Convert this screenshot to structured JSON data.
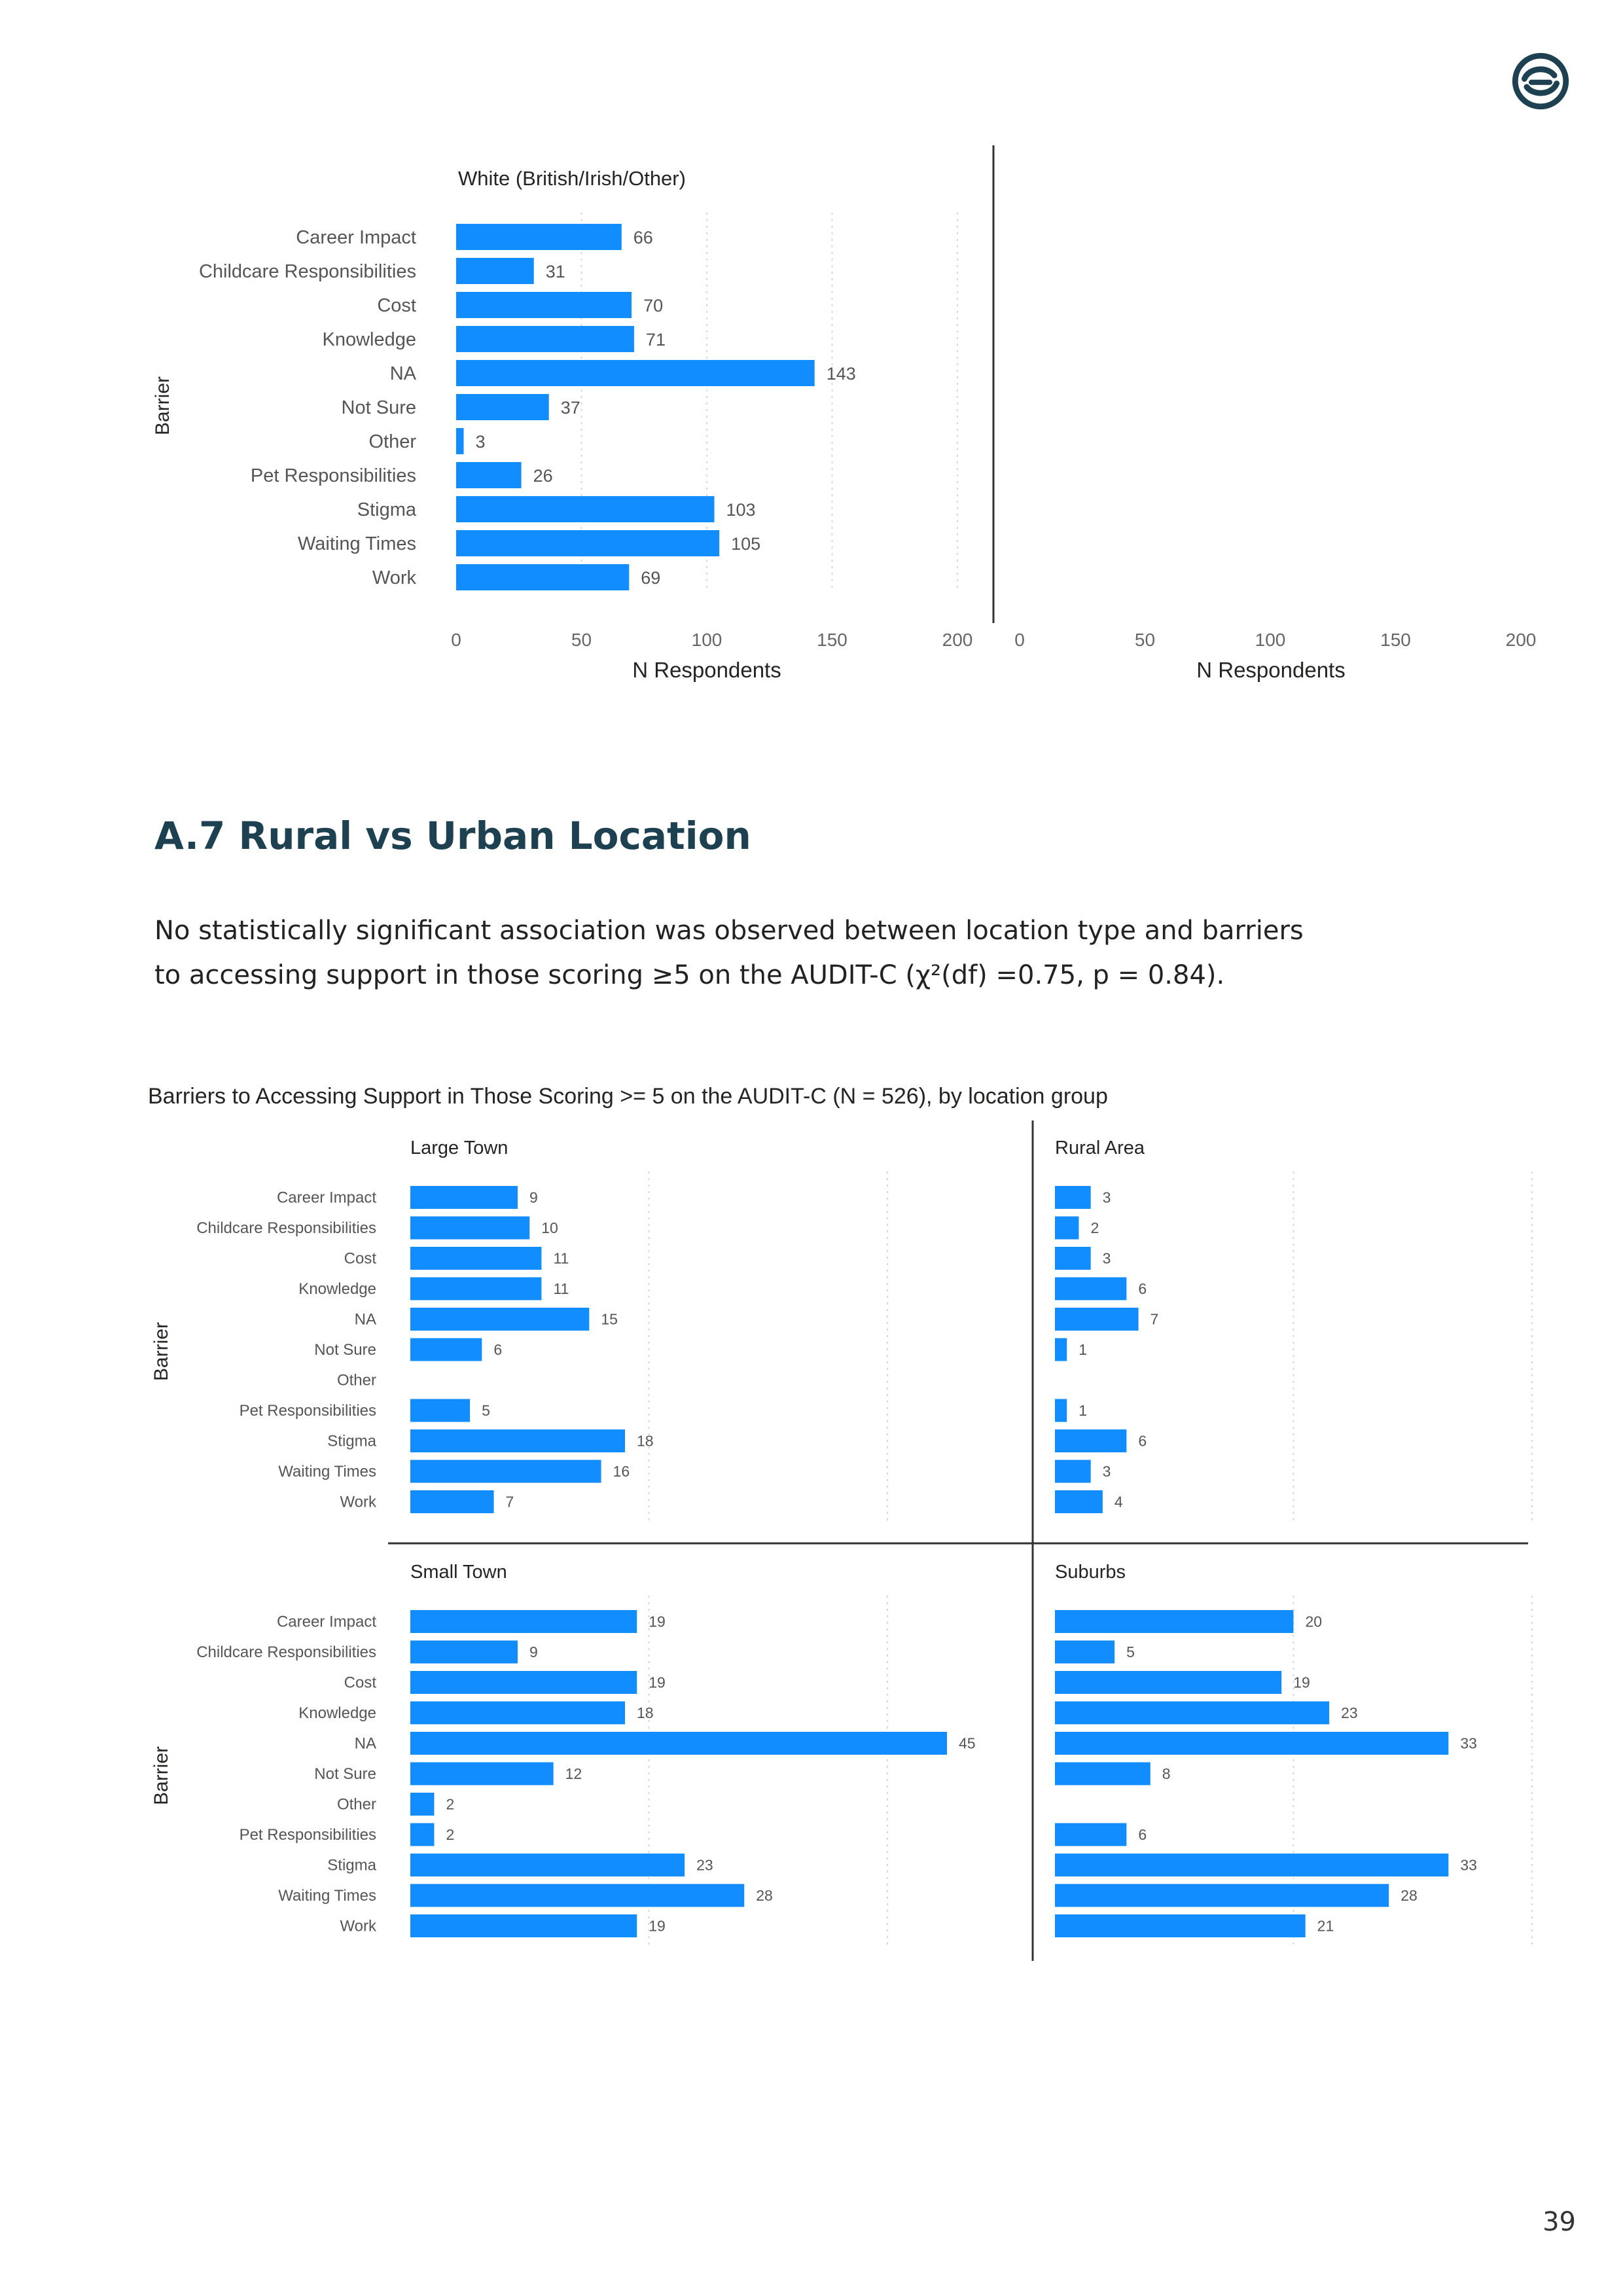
{
  "logo": {
    "icon": "swirl-logo-icon",
    "color": "#1d4150"
  },
  "page": {
    "number": "39"
  },
  "section": {
    "heading": "A.7 Rural vs Urban Location",
    "paragraph_line1": "No statistically significant association was observed between location type and barriers",
    "paragraph_line2": "to accessing support  in those scoring ≥5 on the AUDIT-C (χ²(df) =0.75, p = 0.84)."
  },
  "colors": {
    "bar": "#118dff",
    "heading": "#1d4150"
  },
  "chart_data": [
    {
      "type": "bar",
      "orientation": "horizontal",
      "title": "White (British/Irish/Other)",
      "ylabel": "Barrier",
      "xlabel": "N Respondents",
      "second_panel_xlabel": "N Respondents",
      "xlim": [
        0,
        200
      ],
      "xticks": [
        "0",
        "50",
        "100",
        "150",
        "200"
      ],
      "categories": [
        "Career Impact",
        "Childcare Responsibilities",
        "Cost",
        "Knowledge",
        "NA",
        "Not Sure",
        "Other",
        "Pet Responsibilities",
        "Stigma",
        "Waiting Times",
        "Work"
      ],
      "values": [
        66,
        31,
        70,
        71,
        143,
        37,
        3,
        26,
        103,
        105,
        69
      ]
    },
    {
      "type": "bar",
      "orientation": "horizontal",
      "title": "Barriers to Accessing Support in Those Scoring >= 5 on the AUDIT-C (N = 526), by location group",
      "ylabel": "Barrier",
      "categories": [
        "Career Impact",
        "Childcare Responsibilities",
        "Cost",
        "Knowledge",
        "NA",
        "Not Sure",
        "Other",
        "Pet Responsibilities",
        "Stigma",
        "Waiting Times",
        "Work"
      ],
      "xlim": [
        0,
        45
      ],
      "series": [
        {
          "name": "Large Town",
          "values": [
            9,
            10,
            11,
            11,
            15,
            6,
            null,
            5,
            18,
            16,
            7
          ]
        },
        {
          "name": "Rural Area",
          "values": [
            3,
            2,
            3,
            6,
            7,
            1,
            null,
            1,
            6,
            3,
            4
          ]
        },
        {
          "name": "Small Town",
          "values": [
            19,
            9,
            19,
            18,
            45,
            12,
            2,
            2,
            23,
            28,
            19
          ]
        },
        {
          "name": "Suburbs",
          "values": [
            20,
            5,
            19,
            23,
            33,
            8,
            null,
            6,
            33,
            28,
            21
          ]
        }
      ]
    }
  ]
}
